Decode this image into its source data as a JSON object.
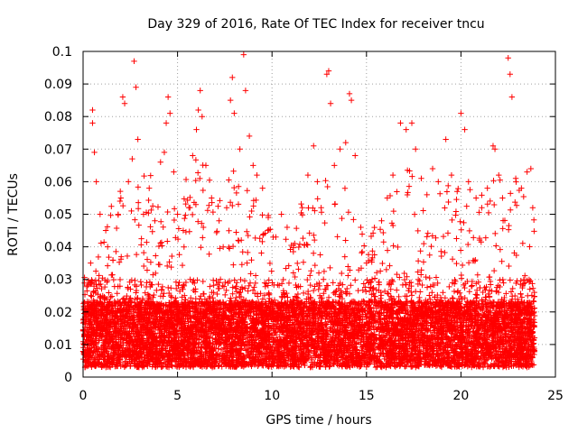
{
  "chart_data": {
    "type": "scatter",
    "title": "Day 329 of 2016, Rate Of TEC Index for receiver tncu",
    "xlabel": "GPS time / hours",
    "ylabel": "ROTI / TECUs",
    "xlim": [
      0,
      25
    ],
    "ylim": [
      0,
      0.1
    ],
    "xticks": [
      0,
      5,
      10,
      15,
      20,
      25
    ],
    "xtick_labels": [
      "0",
      "5",
      "10",
      "15",
      "20",
      "25"
    ],
    "yticks": [
      0,
      0.01,
      0.02,
      0.03,
      0.04,
      0.05,
      0.06,
      0.07,
      0.08,
      0.09,
      0.1
    ],
    "ytick_labels": [
      "0",
      "0.01",
      "0.02",
      "0.03",
      "0.04",
      "0.05",
      "0.06",
      "0.07",
      "0.08",
      "0.09",
      "0.1"
    ],
    "grid": true,
    "marker": "+",
    "color": "#ff0000",
    "series": [
      {
        "name": "ROTI",
        "points": [
          [
            0.3,
            0.012
          ],
          [
            0.4,
            0.035
          ],
          [
            0.5,
            0.082
          ],
          [
            0.5,
            0.078
          ],
          [
            0.6,
            0.069
          ],
          [
            0.7,
            0.06
          ],
          [
            0.9,
            0.05
          ],
          [
            1.0,
            0.015
          ],
          [
            1.2,
            0.045
          ],
          [
            1.3,
            0.04
          ],
          [
            1.5,
            0.013
          ],
          [
            1.8,
            0.02
          ],
          [
            2.0,
            0.055
          ],
          [
            2.1,
            0.086
          ],
          [
            2.2,
            0.084
          ],
          [
            2.4,
            0.06
          ],
          [
            2.6,
            0.067
          ],
          [
            2.7,
            0.097
          ],
          [
            2.8,
            0.089
          ],
          [
            2.9,
            0.073
          ],
          [
            3.2,
            0.05
          ],
          [
            3.5,
            0.058
          ],
          [
            3.8,
            0.048
          ],
          [
            4.1,
            0.066
          ],
          [
            4.3,
            0.069
          ],
          [
            4.4,
            0.078
          ],
          [
            4.5,
            0.086
          ],
          [
            4.6,
            0.081
          ],
          [
            4.8,
            0.063
          ],
          [
            5.0,
            0.05
          ],
          [
            5.3,
            0.045
          ],
          [
            5.6,
            0.052
          ],
          [
            5.8,
            0.068
          ],
          [
            6.0,
            0.076
          ],
          [
            6.1,
            0.082
          ],
          [
            6.2,
            0.088
          ],
          [
            6.3,
            0.08
          ],
          [
            6.5,
            0.065
          ],
          [
            6.8,
            0.055
          ],
          [
            7.2,
            0.048
          ],
          [
            7.6,
            0.052
          ],
          [
            7.8,
            0.085
          ],
          [
            7.9,
            0.092
          ],
          [
            8.0,
            0.081
          ],
          [
            8.3,
            0.07
          ],
          [
            8.5,
            0.099
          ],
          [
            8.6,
            0.088
          ],
          [
            8.8,
            0.074
          ],
          [
            9.0,
            0.065
          ],
          [
            9.2,
            0.062
          ],
          [
            9.5,
            0.058
          ],
          [
            9.8,
            0.049
          ],
          [
            10.2,
            0.043
          ],
          [
            10.5,
            0.05
          ],
          [
            10.8,
            0.046
          ],
          [
            11.2,
            0.041
          ],
          [
            11.6,
            0.052
          ],
          [
            11.9,
            0.062
          ],
          [
            12.2,
            0.071
          ],
          [
            12.4,
            0.06
          ],
          [
            12.6,
            0.052
          ],
          [
            12.9,
            0.093
          ],
          [
            13.0,
            0.094
          ],
          [
            13.1,
            0.084
          ],
          [
            13.3,
            0.065
          ],
          [
            13.6,
            0.07
          ],
          [
            13.9,
            0.072
          ],
          [
            14.1,
            0.087
          ],
          [
            14.2,
            0.085
          ],
          [
            14.4,
            0.068
          ],
          [
            14.7,
            0.046
          ],
          [
            15.0,
            0.035
          ],
          [
            15.3,
            0.03
          ],
          [
            15.8,
            0.048
          ],
          [
            16.1,
            0.055
          ],
          [
            16.4,
            0.062
          ],
          [
            16.8,
            0.078
          ],
          [
            17.1,
            0.076
          ],
          [
            17.4,
            0.078
          ],
          [
            17.6,
            0.07
          ],
          [
            17.9,
            0.061
          ],
          [
            18.2,
            0.056
          ],
          [
            18.5,
            0.064
          ],
          [
            18.8,
            0.06
          ],
          [
            19.2,
            0.073
          ],
          [
            19.5,
            0.062
          ],
          [
            19.8,
            0.057
          ],
          [
            20.0,
            0.081
          ],
          [
            20.2,
            0.076
          ],
          [
            20.4,
            0.06
          ],
          [
            20.8,
            0.055
          ],
          [
            21.1,
            0.052
          ],
          [
            21.4,
            0.058
          ],
          [
            21.7,
            0.071
          ],
          [
            21.8,
            0.07
          ],
          [
            22.0,
            0.062
          ],
          [
            22.2,
            0.055
          ],
          [
            22.5,
            0.098
          ],
          [
            22.6,
            0.093
          ],
          [
            22.7,
            0.086
          ],
          [
            22.9,
            0.061
          ],
          [
            23.2,
            0.058
          ],
          [
            23.5,
            0.063
          ],
          [
            23.7,
            0.064
          ],
          [
            23.8,
            0.052
          ]
        ],
        "dense_band": {
          "description": "continuous observations every few minutes across the day",
          "x_range": [
            0,
            23.9
          ],
          "typical_range": [
            0.003,
            0.03
          ],
          "peak_envelope": [
            [
              0,
              0.03
            ],
            [
              1,
              0.045
            ],
            [
              2,
              0.06
            ],
            [
              3,
              0.065
            ],
            [
              4,
              0.06
            ],
            [
              5,
              0.055
            ],
            [
              6,
              0.07
            ],
            [
              7,
              0.06
            ],
            [
              8,
              0.065
            ],
            [
              9,
              0.06
            ],
            [
              10,
              0.05
            ],
            [
              11,
              0.045
            ],
            [
              12,
              0.06
            ],
            [
              13,
              0.065
            ],
            [
              14,
              0.06
            ],
            [
              15,
              0.04
            ],
            [
              16,
              0.055
            ],
            [
              17,
              0.065
            ],
            [
              18,
              0.062
            ],
            [
              19,
              0.06
            ],
            [
              20,
              0.058
            ],
            [
              21,
              0.058
            ],
            [
              22,
              0.062
            ],
            [
              23,
              0.06
            ],
            [
              23.9,
              0.05
            ]
          ]
        }
      }
    ]
  }
}
